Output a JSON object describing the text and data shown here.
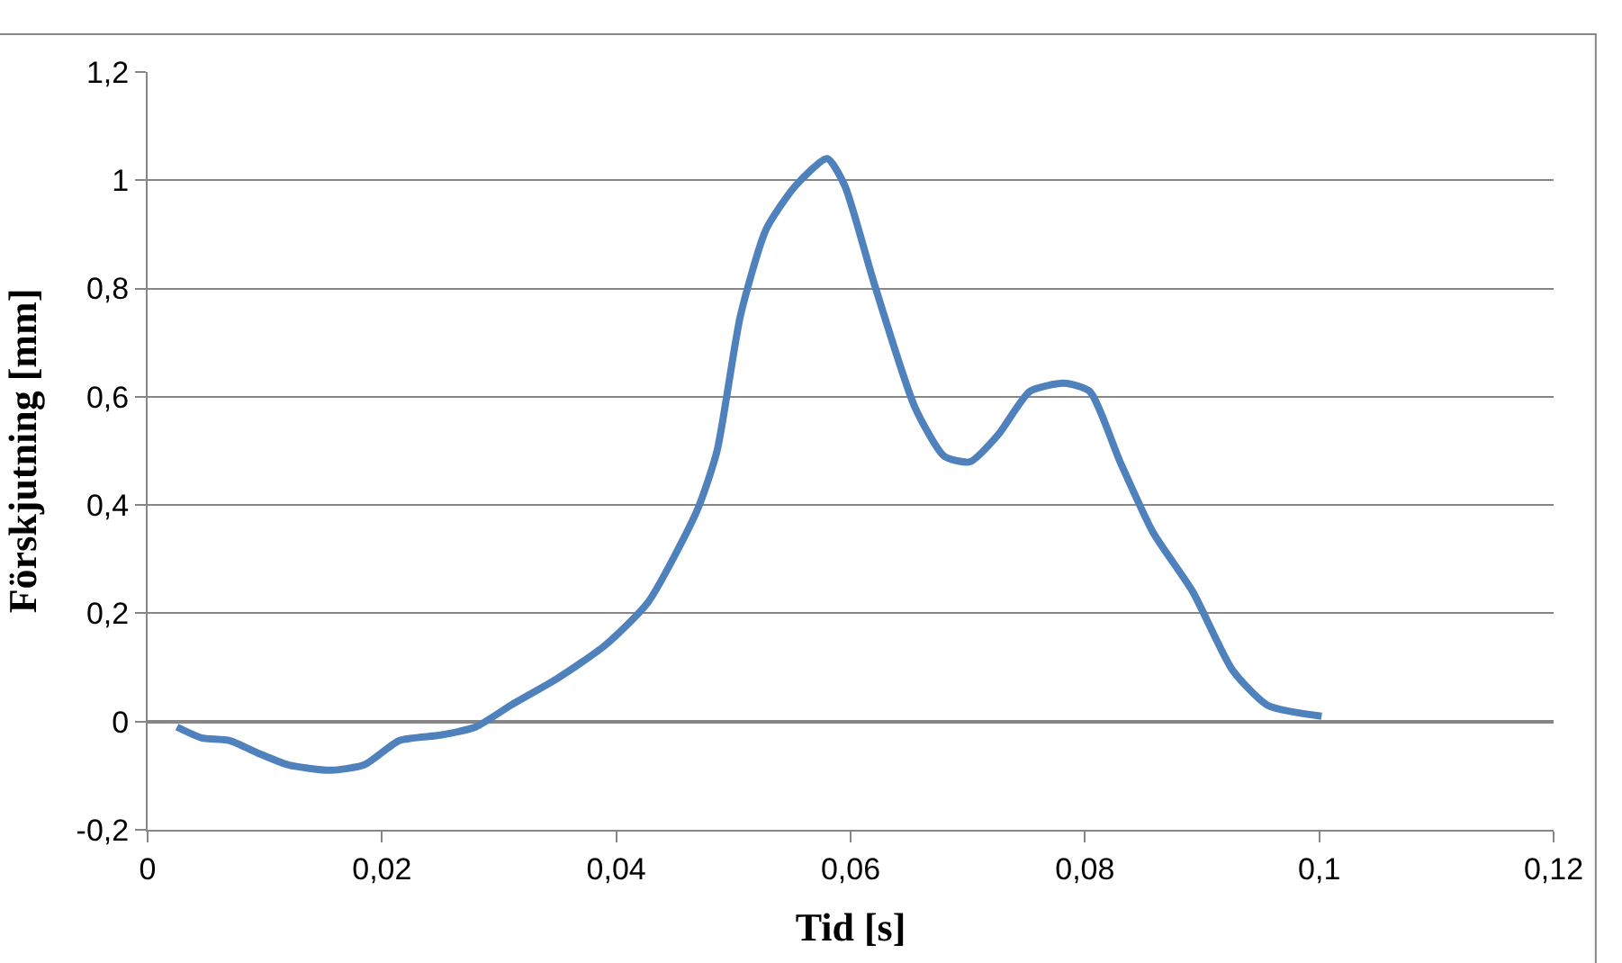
{
  "chart_data": {
    "type": "line",
    "xlabel": "Tid [s]",
    "ylabel": "Förskjutning [mm]",
    "x": [
      0.0025,
      0.0046,
      0.007,
      0.0096,
      0.012,
      0.0156,
      0.0185,
      0.0215,
      0.025,
      0.028,
      0.031,
      0.035,
      0.039,
      0.0427,
      0.0469,
      0.0486,
      0.0506,
      0.0528,
      0.0553,
      0.058,
      0.0595,
      0.062,
      0.0655,
      0.068,
      0.0702,
      0.0726,
      0.0753,
      0.0782,
      0.0804,
      0.083,
      0.0858,
      0.0892,
      0.0926,
      0.0956,
      0.1002
    ],
    "series": [
      {
        "color": "#4f81bd",
        "values": [
          -0.01,
          -0.03,
          -0.035,
          -0.06,
          -0.08,
          -0.09,
          -0.08,
          -0.035,
          -0.025,
          -0.01,
          0.03,
          0.08,
          0.14,
          0.22,
          0.39,
          0.5,
          0.75,
          0.91,
          0.99,
          1.04,
          0.99,
          0.81,
          0.58,
          0.49,
          0.48,
          0.53,
          0.61,
          0.625,
          0.61,
          0.48,
          0.35,
          0.24,
          0.095,
          0.03,
          0.01
        ]
      }
    ],
    "xlim": [
      0,
      0.12
    ],
    "ylim": [
      -0.2,
      1.2
    ],
    "xticks": [
      0,
      {
        "value": 0.02,
        "label": "0,02"
      },
      {
        "value": 0.04,
        "label": "0,04"
      },
      {
        "value": 0.06,
        "label": "0,06"
      },
      {
        "value": 0.08,
        "label": "0,08"
      },
      {
        "value": 0.1,
        "label": "0,1"
      },
      {
        "value": 0.12,
        "label": "0,12"
      }
    ],
    "yticks": [
      {
        "value": -0.2,
        "label": "-0,2"
      },
      0,
      {
        "value": 0.2,
        "label": "0,2"
      },
      {
        "value": 0.4,
        "label": "0,4"
      },
      {
        "value": 0.6,
        "label": "0,6"
      },
      {
        "value": 0.8,
        "label": "0,8"
      },
      1,
      {
        "value": 1.2,
        "label": "1,2"
      }
    ],
    "grid": "y",
    "legend": false,
    "marker": "none",
    "line_style": "solid"
  }
}
